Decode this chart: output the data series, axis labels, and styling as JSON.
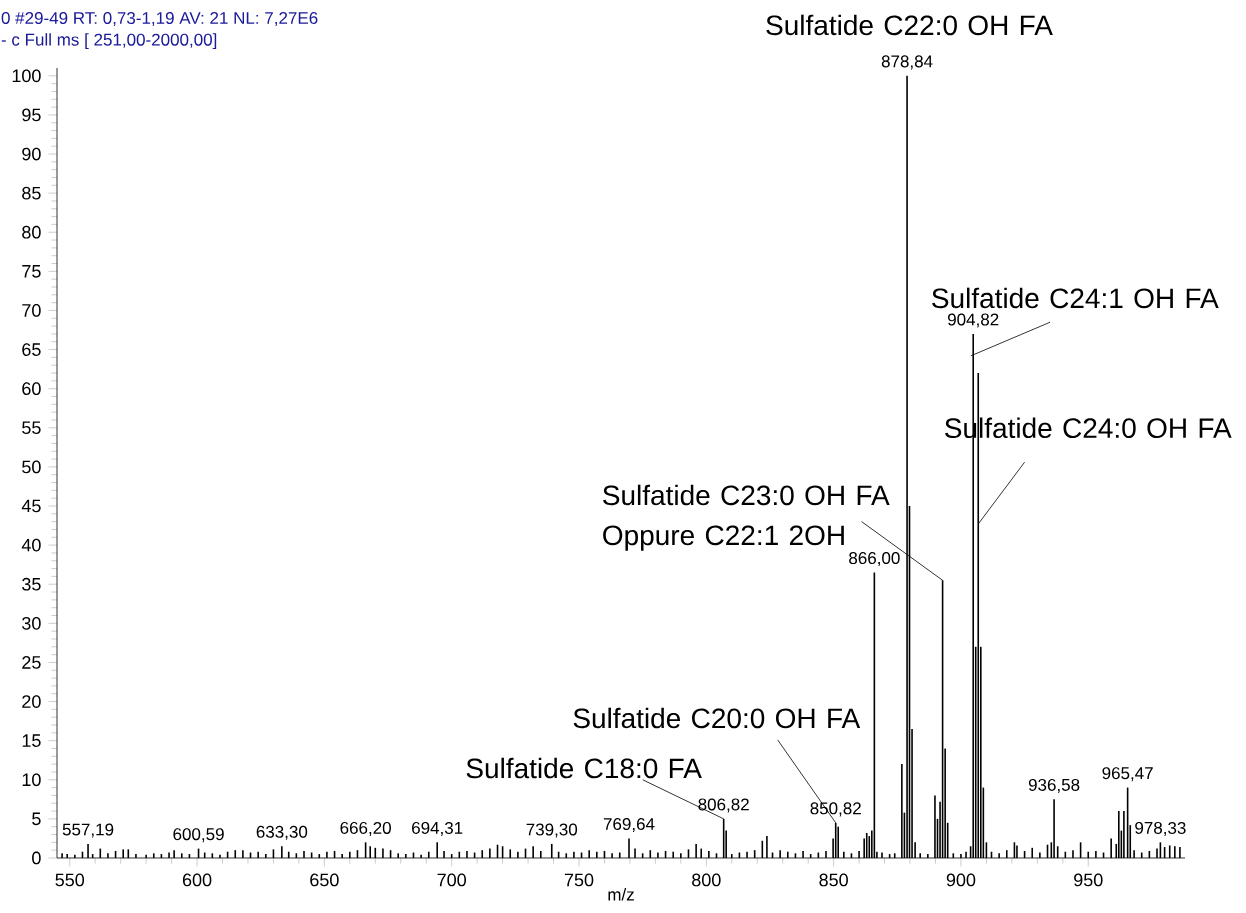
{
  "chart_data": {
    "type": "bar",
    "xlabel": "m/z",
    "color": "#000000",
    "xlim": [
      545,
      988
    ],
    "ylim": [
      0,
      101
    ],
    "xticks": [
      550,
      600,
      650,
      700,
      750,
      800,
      850,
      900,
      950
    ],
    "yticks": [
      0,
      5,
      10,
      15,
      20,
      25,
      30,
      35,
      40,
      45,
      50,
      55,
      60,
      65,
      70,
      75,
      80,
      85,
      90,
      95,
      100
    ],
    "x": [
      547,
      549,
      552,
      555,
      557.19,
      559,
      562,
      565,
      568,
      571,
      573,
      576,
      580,
      583,
      586,
      589,
      591,
      594,
      597,
      600.59,
      603,
      606,
      609,
      612,
      615,
      618,
      621,
      624,
      627,
      630,
      633.3,
      636,
      639,
      642,
      645,
      648,
      651,
      654,
      657,
      660,
      663,
      666.2,
      668,
      670,
      673,
      676,
      679,
      682,
      685,
      688,
      691,
      694.31,
      697,
      700,
      703,
      706,
      709,
      712,
      715,
      718,
      720,
      723,
      726,
      729,
      732,
      735,
      739.3,
      742,
      745,
      748,
      751,
      754,
      757,
      760,
      763,
      766,
      769.64,
      772,
      775,
      778,
      781,
      784,
      787,
      790,
      793,
      796,
      798,
      801,
      804,
      806.82,
      807.8,
      810,
      813,
      816,
      819,
      822,
      823.8,
      826,
      829,
      832,
      835,
      838,
      841,
      844,
      847,
      849.8,
      850.82,
      851.8,
      854,
      857,
      860,
      862,
      863,
      864,
      865,
      866.0,
      867,
      869,
      872,
      874,
      876.8,
      877.8,
      878.84,
      879.8,
      880.8,
      882,
      884,
      887,
      889.8,
      890.8,
      891.8,
      892.8,
      893.8,
      894.8,
      897,
      900,
      902,
      903.8,
      904.82,
      905.8,
      906.8,
      907.8,
      908.8,
      910,
      912,
      915,
      918,
      921,
      922,
      925,
      928,
      931,
      934,
      935.5,
      936.58,
      938,
      941,
      944,
      947,
      950,
      953,
      956,
      959,
      961,
      962,
      963,
      964,
      965.47,
      966.5,
      968,
      971,
      974,
      977,
      978.33,
      980,
      982,
      984,
      986
    ],
    "values": [
      0.6,
      0.5,
      0.4,
      0.8,
      1.8,
      0.5,
      1.2,
      0.6,
      0.9,
      1.1,
      1.1,
      0.5,
      0.4,
      0.6,
      0.5,
      0.7,
      1.0,
      0.6,
      0.5,
      1.2,
      0.7,
      0.6,
      0.4,
      0.8,
      1.0,
      1.0,
      0.7,
      0.8,
      0.5,
      1.1,
      1.5,
      0.8,
      0.6,
      0.9,
      0.7,
      0.5,
      0.8,
      0.9,
      0.5,
      0.8,
      1.0,
      2.0,
      1.5,
      1.3,
      1.2,
      1.0,
      0.6,
      0.5,
      0.7,
      0.4,
      0.8,
      2.0,
      0.9,
      0.5,
      0.8,
      0.9,
      0.7,
      1.0,
      1.2,
      1.7,
      1.5,
      1.1,
      0.8,
      1.2,
      1.5,
      0.9,
      1.8,
      0.8,
      0.6,
      0.8,
      0.7,
      1.0,
      0.8,
      0.9,
      0.6,
      0.7,
      2.5,
      1.2,
      0.6,
      1.0,
      0.7,
      0.9,
      0.8,
      0.6,
      1.1,
      1.8,
      1.2,
      0.9,
      0.6,
      5.0,
      3.5,
      0.5,
      0.7,
      0.8,
      1.0,
      2.2,
      2.8,
      0.7,
      1.0,
      0.8,
      0.6,
      0.9,
      0.5,
      0.7,
      0.9,
      2.5,
      4.5,
      4.0,
      0.8,
      0.6,
      0.9,
      2.5,
      3.2,
      2.8,
      3.5,
      36.5,
      0.8,
      0.7,
      0.5,
      0.6,
      12.0,
      5.8,
      100,
      45,
      16.5,
      2.0,
      0.6,
      0.5,
      8.0,
      5.0,
      7.2,
      35.5,
      14.0,
      4.5,
      0.6,
      0.5,
      0.8,
      1.5,
      67,
      27,
      62,
      27,
      9.0,
      2.0,
      0.8,
      0.6,
      1.0,
      2.0,
      1.6,
      0.9,
      1.3,
      0.7,
      1.7,
      2.0,
      7.5,
      1.5,
      0.8,
      1.0,
      2.0,
      0.8,
      0.9,
      0.7,
      2.5,
      1.8,
      6.0,
      3.5,
      6.0,
      9.0,
      4.2,
      1.0,
      0.7,
      0.9,
      1.2,
      2.0,
      1.4,
      1.6,
      1.5,
      1.4
    ],
    "annotations": [
      "0 #29-49   RT: 0,73-1,19   AV: 21   NL: 7,27E6",
      "- c Full ms [ 251,00-2000,00]",
      {
        "text": "557,19",
        "x": 557.19,
        "y": 1.8
      },
      {
        "text": "600,59",
        "x": 600.59,
        "y": 1.2
      },
      {
        "text": "633,30",
        "x": 633.3,
        "y": 1.5
      },
      {
        "text": "666,20",
        "x": 666.2,
        "y": 2.0
      },
      {
        "text": "694,31",
        "x": 694.31,
        "y": 2.0
      },
      {
        "text": "739,30",
        "x": 739.3,
        "y": 1.8
      },
      {
        "text": "769,64",
        "x": 769.64,
        "y": 2.5
      },
      {
        "text": "806,82",
        "x": 806.82,
        "y": 5.0
      },
      {
        "text": "850,82",
        "x": 850.82,
        "y": 4.5
      },
      {
        "text": "866,00",
        "x": 866.0,
        "y": 36.5
      },
      {
        "text": "878,84",
        "x": 878.84,
        "y": 100
      },
      {
        "text": "904,82",
        "x": 904.82,
        "y": 67
      },
      {
        "text": "936,58",
        "x": 936.58,
        "y": 7.5
      },
      {
        "text": "965,47",
        "x": 965.47,
        "y": 9.0
      },
      {
        "text": "978,33",
        "x": 978.33,
        "y": 2.0
      },
      {
        "text": "Sulfatide C22:0 OH FA",
        "x": 878.84,
        "y": 100
      },
      {
        "text": "Sulfatide C24:1 OH FA",
        "x": 904.82,
        "y": 67
      },
      {
        "text": "Sulfatide C24:0 OH FA",
        "x": 906.8,
        "y": 62
      },
      {
        "text": "Sulfatide C23:0 OH FA Oppure C22:1 2OH",
        "x": 892.8,
        "y": 35.5
      },
      {
        "text": "Sulfatide C20:0 OH FA",
        "x": 850.82,
        "y": 4.5
      },
      {
        "text": "Sulfatide C18:0 FA",
        "x": 806.82,
        "y": 5.0
      }
    ]
  }
}
